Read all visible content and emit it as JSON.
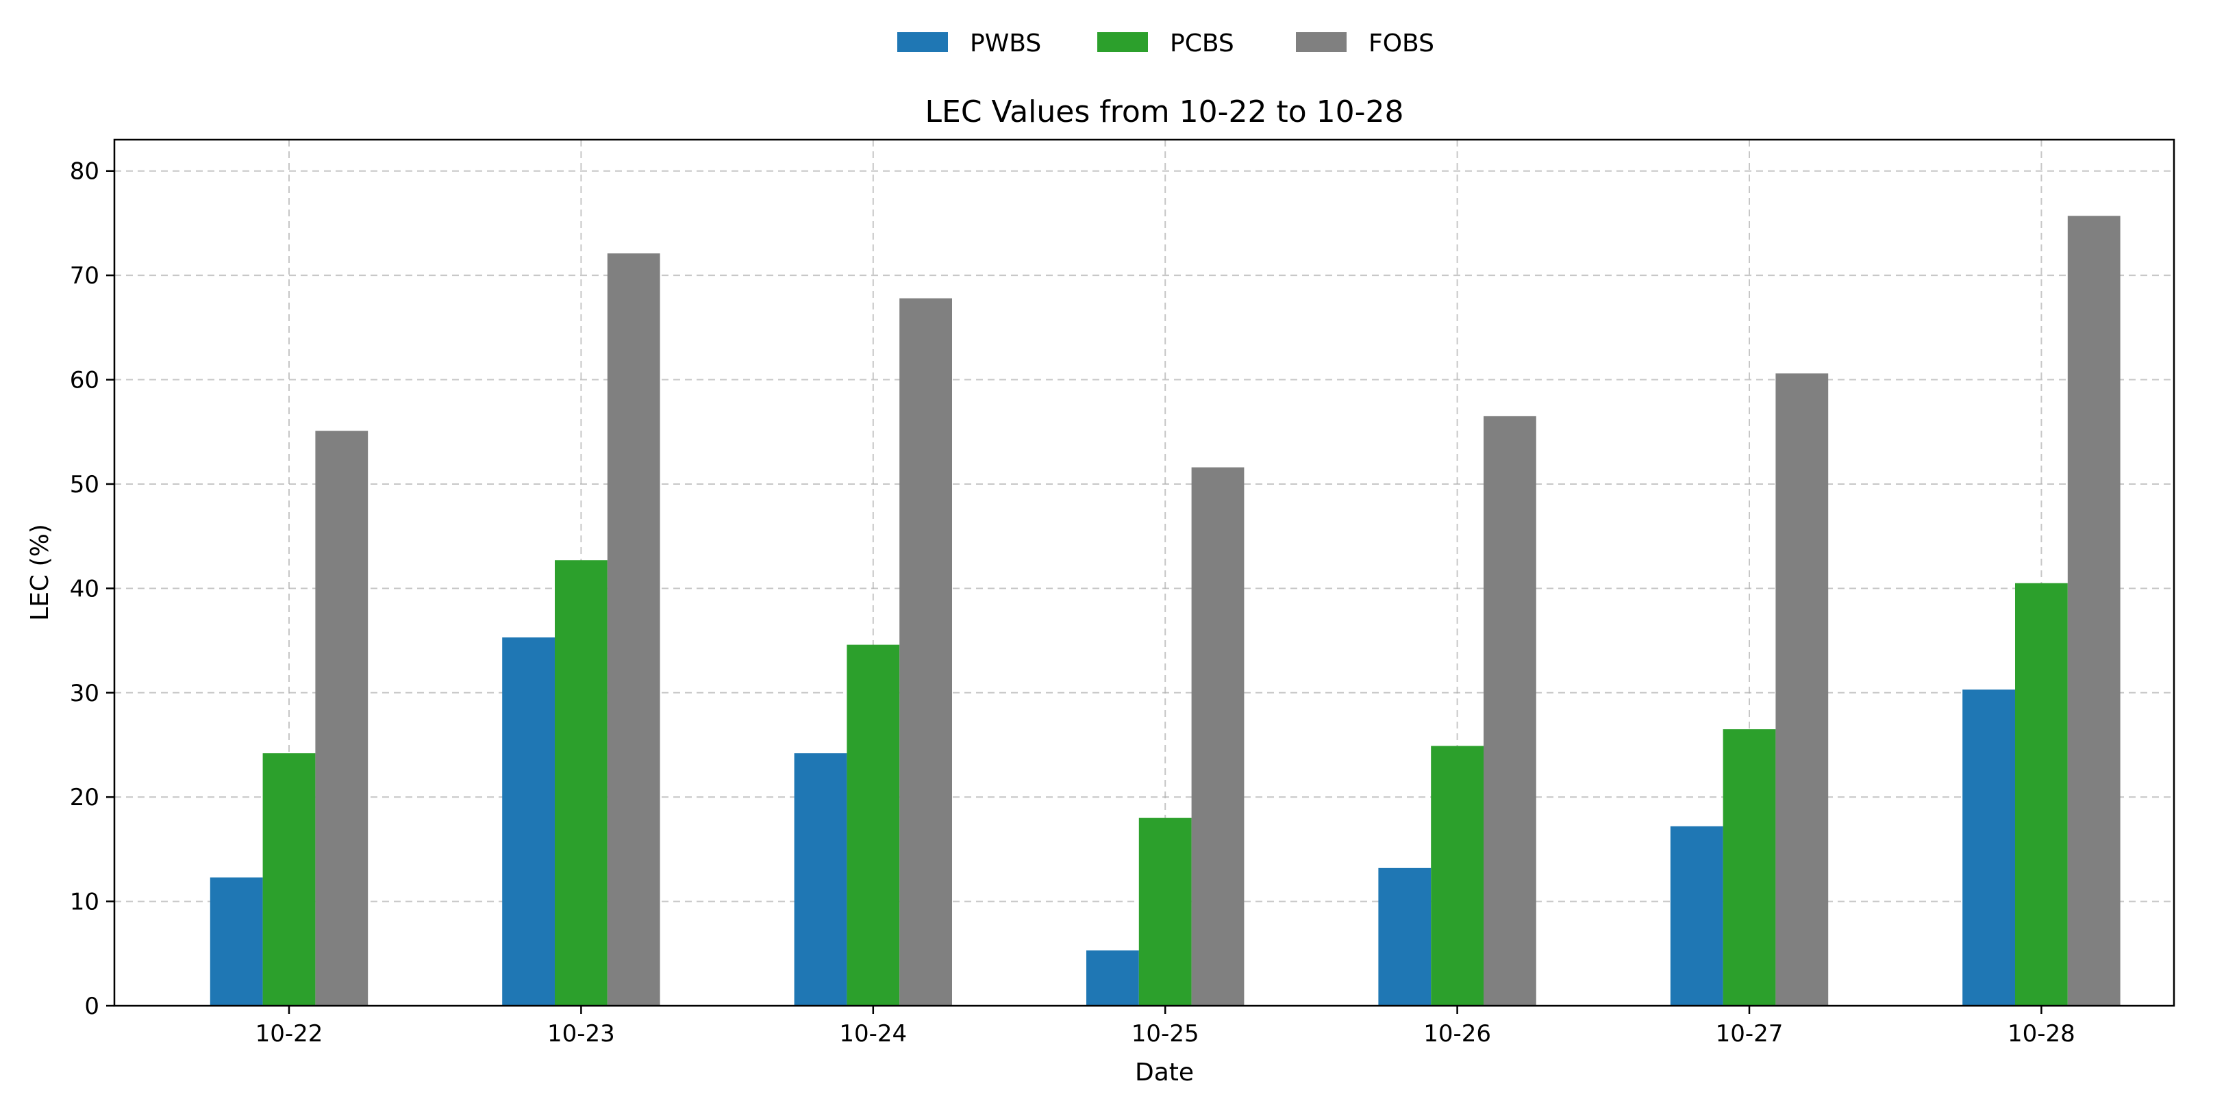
{
  "chart_data": {
    "type": "bar",
    "title": "LEC Values from 10-22 to 10-28",
    "xlabel": "Date",
    "ylabel": "LEC (%)",
    "ylim": [
      0,
      83
    ],
    "yticks": [
      0,
      10,
      20,
      30,
      40,
      50,
      60,
      70,
      80
    ],
    "grid": true,
    "legend_position": "top-center",
    "categories": [
      "10-22",
      "10-23",
      "10-24",
      "10-25",
      "10-26",
      "10-27",
      "10-28"
    ],
    "series": [
      {
        "name": "PWBS",
        "color": "#1f77b4",
        "values": [
          12.3,
          35.3,
          24.2,
          5.3,
          13.2,
          17.2,
          30.3
        ]
      },
      {
        "name": "PCBS",
        "color": "#2ca02c",
        "values": [
          24.2,
          42.7,
          34.6,
          18.0,
          24.9,
          26.5,
          40.5
        ]
      },
      {
        "name": "FOBS",
        "color": "#808080",
        "values": [
          55.1,
          72.1,
          67.8,
          51.6,
          56.5,
          60.6,
          75.7
        ]
      }
    ]
  }
}
